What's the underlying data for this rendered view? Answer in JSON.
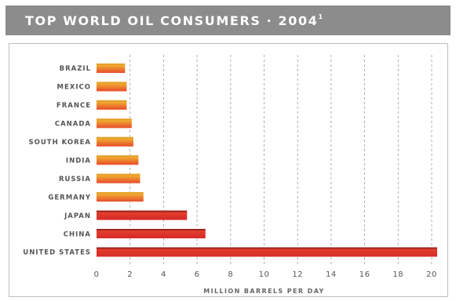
{
  "title": {
    "text": "TOP WORLD OIL CONSUMERS · 2004",
    "footnote_mark": "1"
  },
  "colors": {
    "title_bar": "#8c8c8c",
    "bar_top_gradient": [
      "#f2c02f",
      "#e02a2a"
    ],
    "grid": "#9a9a9a"
  },
  "chart_data": {
    "type": "bar",
    "orientation": "horizontal",
    "categories": [
      "BRAZIL",
      "MEXICO",
      "FRANCE",
      "CANADA",
      "SOUTH KOREA",
      "INDIA",
      "RUSSIA",
      "GERMANY",
      "JAPAN",
      "CHINA",
      "UNITED STATES"
    ],
    "values": [
      1.7,
      1.8,
      1.8,
      2.1,
      2.2,
      2.5,
      2.6,
      2.8,
      5.4,
      6.5,
      20.4
    ],
    "xlabel": "MILLION BARRELS PER DAY",
    "ylabel": "",
    "xlim": [
      0,
      20
    ],
    "xticks": [
      "0",
      "2",
      "4",
      "6",
      "8",
      "10",
      "12",
      "14",
      "16",
      "18",
      "20"
    ],
    "grid": "vertical dashed",
    "legend": "none"
  }
}
